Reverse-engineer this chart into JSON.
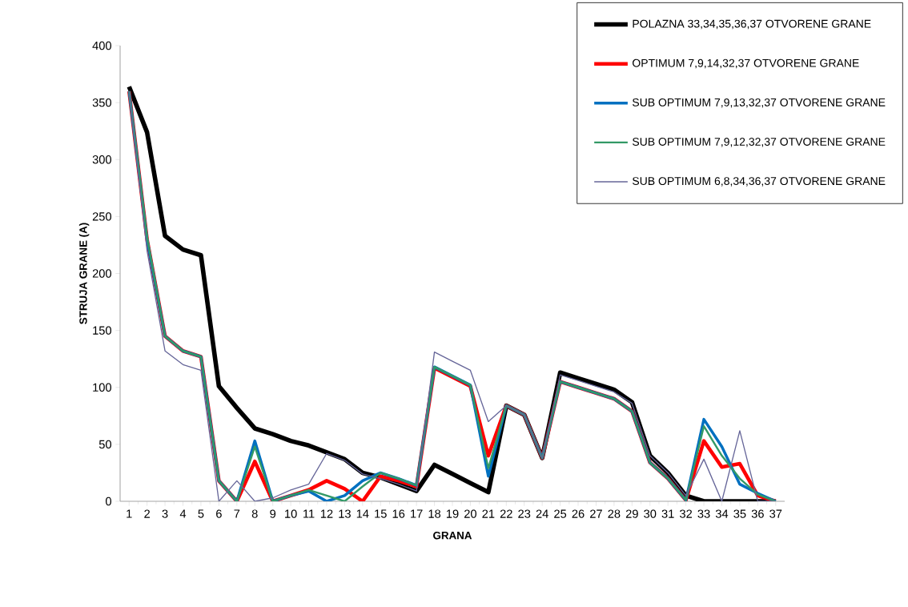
{
  "chart_data": {
    "type": "line",
    "xlabel": "GRANA",
    "ylabel": "STRUJA GRANE (A)",
    "categories": [
      "1",
      "2",
      "3",
      "4",
      "5",
      "6",
      "7",
      "8",
      "9",
      "10",
      "11",
      "12",
      "13",
      "14",
      "15",
      "16",
      "17",
      "18",
      "19",
      "20",
      "21",
      "22",
      "23",
      "24",
      "25",
      "26",
      "27",
      "28",
      "29",
      "30",
      "31",
      "32",
      "33",
      "34",
      "35",
      "36",
      "37"
    ],
    "ylim": [
      0,
      400
    ],
    "yticks": [
      0,
      50,
      100,
      150,
      200,
      250,
      300,
      350,
      400
    ],
    "grid": false,
    "legend": "top right",
    "marker": "none",
    "line_style": "solid",
    "series": [
      {
        "name": "POLAZNA 33,34,35,36,37 OTVORENE GRANE",
        "color": "#000000",
        "values": [
          364,
          324,
          233,
          221,
          216,
          101,
          82,
          64,
          59,
          53,
          49,
          43,
          37,
          25,
          21,
          15,
          9,
          32,
          24,
          16,
          8,
          84,
          76,
          38,
          113,
          108,
          103,
          98,
          87,
          40,
          25,
          5,
          0,
          0,
          0,
          0,
          0
        ]
      },
      {
        "name": "OPTIMUM 7,9,14,32,37 OTVORENE GRANE",
        "color": "#ff0000",
        "values": [
          360,
          230,
          145,
          132,
          127,
          18,
          0,
          35,
          0,
          5,
          10,
          18,
          11,
          0,
          22,
          18,
          13,
          117,
          109,
          101,
          40,
          84,
          76,
          38,
          105,
          100,
          95,
          90,
          79,
          34,
          20,
          1,
          53,
          30,
          33,
          5,
          0
        ]
      },
      {
        "name": "SUB OPTIMUM 7,9,13,32,37 OTVORENE GRANE",
        "color": "#0070c0",
        "values": [
          360,
          230,
          145,
          132,
          127,
          18,
          0,
          53,
          0,
          5,
          9,
          0,
          5,
          18,
          25,
          20,
          14,
          118,
          110,
          102,
          22,
          84,
          76,
          38,
          105,
          100,
          95,
          90,
          79,
          34,
          20,
          1,
          72,
          48,
          15,
          7,
          0
        ]
      },
      {
        "name": "SUB OPTIMUM 7,9,12,32,37 OTVORENE GRANE",
        "color": "#339966",
        "values": [
          360,
          232,
          145,
          132,
          127,
          18,
          0,
          48,
          0,
          5,
          10,
          5,
          0,
          13,
          25,
          20,
          14,
          118,
          110,
          102,
          29,
          84,
          76,
          38,
          105,
          100,
          95,
          90,
          79,
          34,
          20,
          1,
          66,
          40,
          20,
          6,
          0
        ]
      },
      {
        "name": "SUB OPTIMUM 6,8,34,36,37 OTVORENE GRANE",
        "color": "#666699",
        "values": [
          360,
          220,
          132,
          120,
          115,
          0,
          18,
          0,
          3,
          10,
          15,
          42,
          36,
          24,
          20,
          15,
          9,
          131,
          123,
          115,
          70,
          84,
          76,
          38,
          111,
          106,
          101,
          96,
          86,
          40,
          25,
          5,
          37,
          0,
          62,
          0,
          0
        ]
      }
    ]
  }
}
